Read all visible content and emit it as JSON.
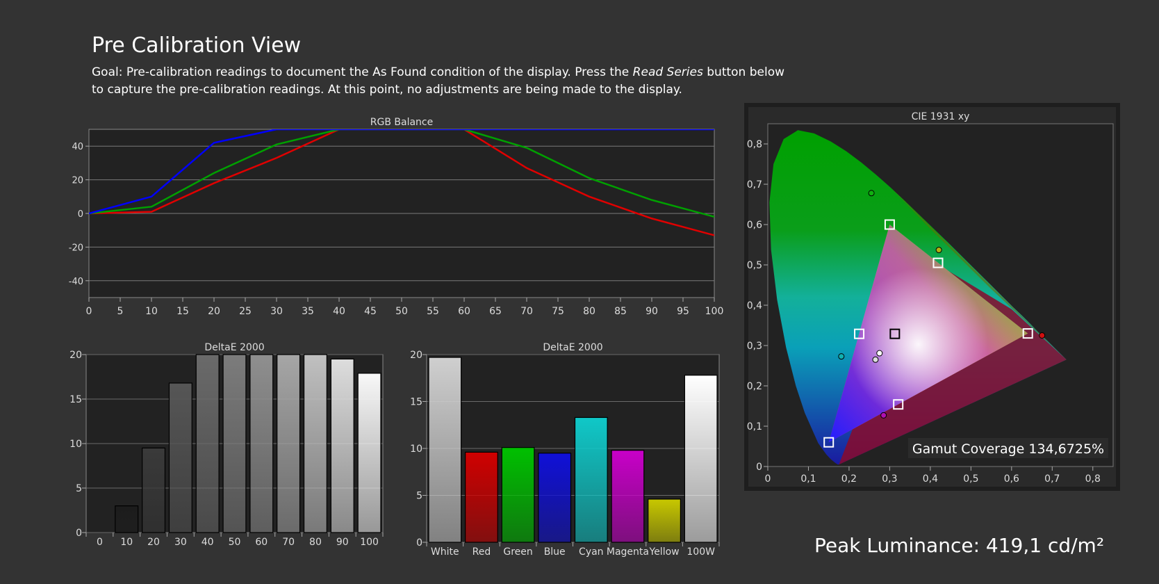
{
  "page": {
    "title": "Pre Calibration View",
    "goal_prefix": "Goal: Pre-calibration readings to document the As Found condition of the display. Press the ",
    "goal_emphasis": "Read Series",
    "goal_suffix": " button below to capture the pre-calibration readings. At this point, no adjustments are being made to the display.",
    "peak_luminance": "Peak Luminance: 419,1 cd/m²"
  },
  "chart_data": [
    {
      "id": "rgb",
      "type": "line",
      "title": "RGB Balance",
      "xlim": [
        0,
        100
      ],
      "ylim": [
        -50,
        50
      ],
      "x_ticks": [
        0,
        5,
        10,
        15,
        20,
        25,
        30,
        35,
        40,
        45,
        50,
        55,
        60,
        65,
        70,
        75,
        80,
        85,
        90,
        95,
        100
      ],
      "y_ticks": [
        40,
        20,
        0,
        -20,
        -40
      ],
      "x": [
        0,
        10,
        20,
        30,
        40,
        50,
        60,
        70,
        80,
        90,
        100
      ],
      "series": [
        {
          "color": "#0000ff",
          "values": [
            0,
            10,
            42,
            50,
            50,
            50,
            50,
            50,
            50,
            50,
            50
          ]
        },
        {
          "color": "#00a000",
          "values": [
            0,
            4,
            24,
            41,
            50,
            50,
            50,
            39,
            21,
            8,
            -2
          ]
        },
        {
          "color": "#e00000",
          "values": [
            0,
            1,
            18,
            33,
            50,
            50,
            50,
            27,
            10,
            -3,
            -13
          ]
        }
      ]
    },
    {
      "id": "grayscale",
      "type": "bar",
      "title": "DeltaE 2000",
      "ylim": [
        0,
        20
      ],
      "y_ticks": [
        20,
        15,
        10,
        5,
        0
      ],
      "categories": [
        "0",
        "10",
        "20",
        "30",
        "40",
        "50",
        "60",
        "70",
        "80",
        "90",
        "100"
      ],
      "values": [
        0,
        3.0,
        9.5,
        16.8,
        20,
        20,
        20,
        20,
        20,
        19.5,
        17.9
      ],
      "colors": [
        "#000000",
        "#1c1c1c",
        "#3a3a3a",
        "#565656",
        "#6a6a6a",
        "#7c7c7c",
        "#8f8f8f",
        "#a6a6a6",
        "#c0c0c0",
        "#dddddd",
        "#f8f8f8"
      ]
    },
    {
      "id": "colors",
      "type": "bar",
      "title": "DeltaE 2000",
      "ylim": [
        0,
        20
      ],
      "y_ticks": [
        20,
        15,
        10,
        5,
        0
      ],
      "categories": [
        "White",
        "Red",
        "Green",
        "Blue",
        "Cyan",
        "Magenta",
        "Yellow",
        "100W"
      ],
      "values": [
        19.7,
        9.6,
        10.1,
        9.5,
        13.3,
        9.8,
        4.6,
        17.8
      ],
      "colors": [
        "#cfcfcf",
        "#d00000",
        "#00c000",
        "#1010d8",
        "#10c8c8",
        "#c800c8",
        "#c8c800",
        "#ffffff"
      ]
    },
    {
      "id": "cie",
      "type": "scatter",
      "title": "CIE 1931 xy",
      "xlim": [
        0,
        0.85
      ],
      "ylim": [
        0,
        0.85
      ],
      "x_ticks": [
        "0",
        "0,1",
        "0,2",
        "0,3",
        "0,4",
        "0,5",
        "0,6",
        "0,7",
        "0,8"
      ],
      "y_ticks": [
        "0",
        "0,1",
        "0,2",
        "0,3",
        "0,4",
        "0,5",
        "0,6",
        "0,7",
        "0,8"
      ],
      "targets": [
        {
          "name": "red",
          "x": 0.64,
          "y": 0.33
        },
        {
          "name": "green",
          "x": 0.3,
          "y": 0.6
        },
        {
          "name": "blue",
          "x": 0.15,
          "y": 0.06
        },
        {
          "name": "white",
          "x": 0.3127,
          "y": 0.329
        },
        {
          "name": "cyan",
          "x": 0.225,
          "y": 0.329
        },
        {
          "name": "magenta",
          "x": 0.321,
          "y": 0.154
        },
        {
          "name": "yellow",
          "x": 0.419,
          "y": 0.505
        }
      ],
      "measured": [
        {
          "name": "red",
          "x": 0.675,
          "y": 0.325,
          "color": "#d01010"
        },
        {
          "name": "green",
          "x": 0.255,
          "y": 0.678,
          "color": "#10b010"
        },
        {
          "name": "yellow",
          "x": 0.421,
          "y": 0.537,
          "color": "#b0b010"
        },
        {
          "name": "cyan",
          "x": 0.181,
          "y": 0.273,
          "color": "#10b0b0"
        },
        {
          "name": "magenta",
          "x": 0.285,
          "y": 0.127,
          "color": "#b010b0"
        },
        {
          "name": "white-1",
          "x": 0.275,
          "y": 0.281,
          "color": "#ffffff"
        },
        {
          "name": "white-2",
          "x": 0.265,
          "y": 0.265,
          "color": "#dddddd"
        }
      ],
      "gamut_coverage": "Gamut Coverage 134,6725%"
    }
  ]
}
